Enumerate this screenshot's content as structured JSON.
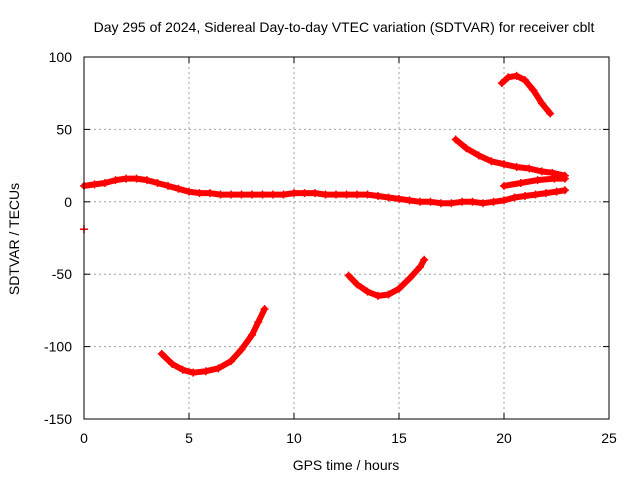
{
  "chart_data": {
    "type": "scatter",
    "title": "Day 295 of 2024, Sidereal Day-to-day VTEC variation (SDTVAR) for receiver cblt",
    "xlabel": "GPS time / hours",
    "ylabel": "SDTVAR / TECUs",
    "xlim": [
      0,
      25
    ],
    "ylim": [
      -150,
      100
    ],
    "xticks": [
      0,
      5,
      10,
      15,
      20,
      25
    ],
    "yticks": [
      -150,
      -100,
      -50,
      0,
      50,
      100
    ],
    "grid": true,
    "color": "#ff0000",
    "series": [
      {
        "name": "main-band",
        "x": [
          0.0,
          0.5,
          1.0,
          1.5,
          2.0,
          2.5,
          3.0,
          3.5,
          4.0,
          4.5,
          5.0,
          5.5,
          6.0,
          6.5,
          7.0,
          7.5,
          8.0,
          8.5,
          9.0,
          9.5,
          10.0,
          10.5,
          11.0,
          11.5,
          12.0,
          12.5,
          13.0,
          13.5,
          14.0,
          14.5,
          15.0,
          15.5,
          16.0,
          16.5,
          17.0,
          17.5,
          18.0,
          18.5,
          19.0,
          19.5,
          20.0,
          20.5,
          21.0,
          21.5,
          22.0,
          22.5,
          22.9
        ],
        "y": [
          11,
          12,
          13,
          15,
          16,
          16,
          15,
          13,
          11,
          9,
          7,
          6,
          6,
          5,
          5,
          5,
          5,
          5,
          5,
          5,
          6,
          6,
          6,
          5,
          5,
          5,
          5,
          5,
          4,
          3,
          2,
          1,
          0,
          0,
          -1,
          -1,
          0,
          0,
          -1,
          0,
          1,
          3,
          4,
          5,
          6,
          7,
          8
        ]
      },
      {
        "name": "upper-band",
        "x": [
          17.7,
          18.2,
          18.8,
          19.4,
          20.0,
          20.6,
          21.2,
          21.8,
          22.3,
          22.9
        ],
        "y": [
          43,
          37,
          32,
          28,
          26,
          24,
          23,
          21,
          20,
          18
        ]
      },
      {
        "name": "crossing-segment",
        "x": [
          20.0,
          20.8,
          21.6,
          22.4,
          22.9
        ],
        "y": [
          11,
          13,
          15,
          16,
          16
        ]
      },
      {
        "name": "arc-high",
        "x": [
          19.9,
          20.2,
          20.6,
          21.0,
          21.4,
          21.8,
          22.2
        ],
        "y": [
          82,
          86,
          87,
          84,
          77,
          68,
          61
        ]
      },
      {
        "name": "arc-mid",
        "x": [
          12.6,
          13.0,
          13.5,
          14.0,
          14.5,
          15.0,
          15.5,
          16.0,
          16.2
        ],
        "y": [
          -51,
          -57,
          -62,
          -65,
          -64,
          -60,
          -53,
          -45,
          -40
        ]
      },
      {
        "name": "arc-low",
        "x": [
          3.7,
          4.2,
          4.7,
          5.2,
          5.8,
          6.4,
          7.0,
          7.5,
          8.0,
          8.3,
          8.6
        ],
        "y": [
          -105,
          -112,
          -116,
          -118,
          -117,
          -115,
          -110,
          -102,
          -92,
          -83,
          -74
        ]
      },
      {
        "name": "outlier",
        "x": [
          0.0
        ],
        "y": [
          -19
        ]
      }
    ]
  }
}
